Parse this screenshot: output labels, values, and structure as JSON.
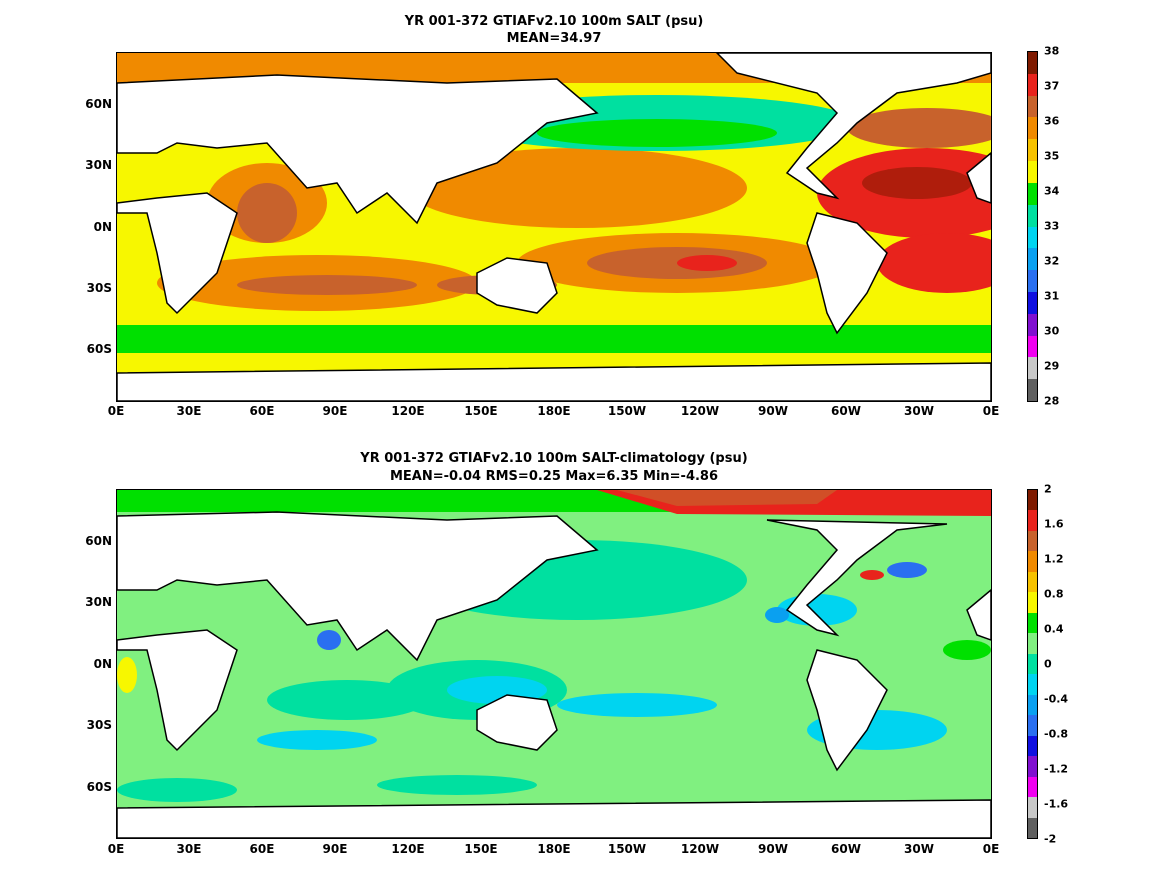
{
  "panels": [
    {
      "title1": "YR 001-372 GTIAFv2.10 100m SALT (psu)",
      "title2": "MEAN=34.97",
      "colorbar": {
        "labels": [
          "38",
          "37",
          "36",
          "35",
          "34",
          "33",
          "32",
          "31",
          "30",
          "29",
          "28"
        ],
        "colors": [
          "#7f1a00",
          "#e8231c",
          "#c8622c",
          "#f08a00",
          "#f7c200",
          "#f7f700",
          "#00e000",
          "#00e0a0",
          "#00d4f0",
          "#0aa0f0",
          "#2a6ff0",
          "#1010e0",
          "#8010d0",
          "#f000f0",
          "#c8c8c8",
          "#606060"
        ]
      }
    },
    {
      "title1": "YR 001-372 GTIAFv2.10 100m SALT-climatology (psu)",
      "title2": "MEAN=-0.04   RMS=0.25   Max=6.35   Min=-4.86",
      "colorbar": {
        "labels": [
          "2",
          "1.6",
          "1.2",
          "0.8",
          "0.4",
          "0",
          "-0.4",
          "-0.8",
          "-1.2",
          "-1.6",
          "-2"
        ],
        "colors": [
          "#7f1a00",
          "#e8231c",
          "#c8622c",
          "#f08a00",
          "#f7c200",
          "#f7f700",
          "#00e000",
          "#80f080",
          "#00e0a0",
          "#00d4f0",
          "#0aa0f0",
          "#2a6ff0",
          "#1010e0",
          "#8010d0",
          "#f000f0",
          "#c8c8c8",
          "#606060"
        ]
      }
    }
  ],
  "x_labels": [
    "0E",
    "30E",
    "60E",
    "90E",
    "120E",
    "150E",
    "180E",
    "150W",
    "120W",
    "90W",
    "60W",
    "30W",
    "0E"
  ],
  "y_labels": [
    "60N",
    "30N",
    "0N",
    "30S",
    "60S"
  ]
}
